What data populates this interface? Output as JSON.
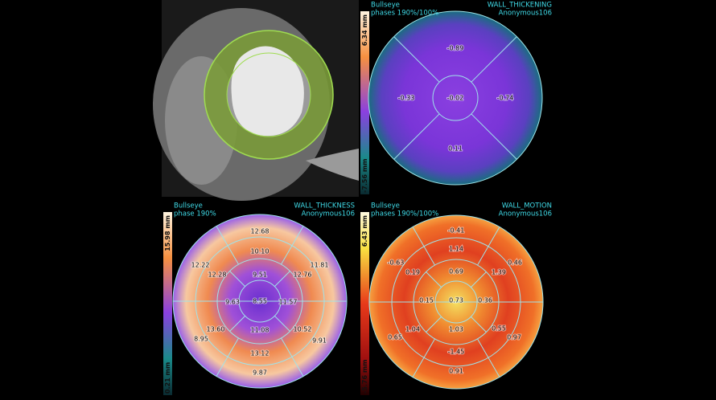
{
  "panels": [
    {
      "name": "ct-image"
    },
    {
      "name": "wall-thickening",
      "mode": "Bullseye",
      "phases": "phases 190%/100%",
      "title": "WALL_THICKENING",
      "patient": "Anonymous106",
      "scale_max": "6.34 mm",
      "scale_min": "-7.56 mm",
      "segments": [
        "-0.89",
        "-0.33",
        "-0.02",
        "-0.74",
        "0.11"
      ]
    },
    {
      "name": "wall-thickness",
      "mode": "Bullseye",
      "phases": "phase 190%",
      "title": "WALL_THICKNESS",
      "patient": "Anonymous106",
      "scale_max": "15.98 mm",
      "scale_min": "0.21 mm",
      "segments": [
        "12.68",
        "10.10",
        "12.22",
        "11.81",
        "12.28",
        "9.51",
        "12.76",
        "9.63",
        "8.55",
        "11.57",
        "13.60",
        "11.08",
        "10.52",
        "8.95",
        "9.91",
        "13.12",
        "9.87"
      ]
    },
    {
      "name": "wall-motion",
      "mode": "Bullseye",
      "phases": "phases 190%/100%",
      "title": "WALL_MOTION",
      "patient": "Anonymous106",
      "scale_max": "6.43 mm",
      "scale_min": "-5.76 mm",
      "segments": [
        "-0.41",
        "-0.63",
        "1.14",
        "0.46",
        "0.19",
        "0.69",
        "1.39",
        "0.15",
        "0.73",
        "0.36",
        "1.04",
        "1.03",
        "0.55",
        "0.65",
        "0.97",
        "-1.45",
        "0.91"
      ]
    }
  ]
}
